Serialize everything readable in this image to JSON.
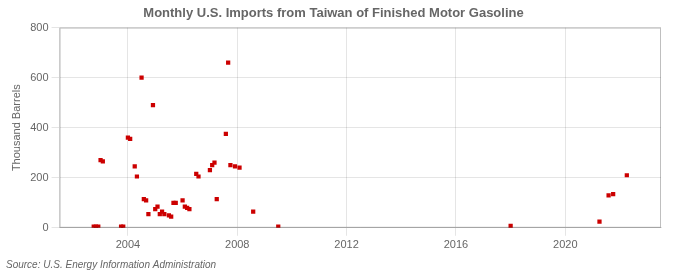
{
  "chart_data": {
    "type": "scatter",
    "title": "Monthly U.S. Imports from Taiwan of Finished Motor Gasoline",
    "y_label": "Thousand Barrels",
    "annotation": "Source: U.S. Energy Information Administration",
    "color": "#cc0000",
    "marker": "square",
    "grid": true,
    "xlim": [
      2001.5,
      2023.5
    ],
    "xticks": [
      2004,
      2008,
      2012,
      2016,
      2020
    ],
    "ylim": [
      0,
      800
    ],
    "yticks": [
      0,
      200,
      400,
      600,
      800
    ],
    "x": [
      2002.75,
      2002.83,
      2002.917,
      2003.0,
      2003.083,
      2003.75,
      2003.83,
      2004.0,
      2004.083,
      2004.25,
      2004.33,
      2004.5,
      2004.583,
      2004.667,
      2004.75,
      2004.917,
      2005.0,
      2005.083,
      2005.167,
      2005.25,
      2005.333,
      2005.5,
      2005.583,
      2005.667,
      2005.75,
      2006.0,
      2006.083,
      2006.167,
      2006.25,
      2006.5,
      2006.583,
      2007.0,
      2007.083,
      2007.167,
      2007.25,
      2007.583,
      2007.667,
      2007.75,
      2007.917,
      2008.083,
      2008.583,
      2009.5,
      2018.0,
      2021.25,
      2021.583,
      2021.75,
      2022.25
    ],
    "values": [
      5,
      5,
      5,
      270,
      265,
      5,
      5,
      360,
      355,
      245,
      205,
      600,
      115,
      110,
      55,
      490,
      75,
      85,
      55,
      65,
      55,
      50,
      45,
      100,
      100,
      110,
      85,
      80,
      75,
      215,
      205,
      230,
      250,
      260,
      115,
      375,
      660,
      250,
      245,
      240,
      65,
      5,
      8,
      25,
      130,
      135,
      210
    ]
  }
}
